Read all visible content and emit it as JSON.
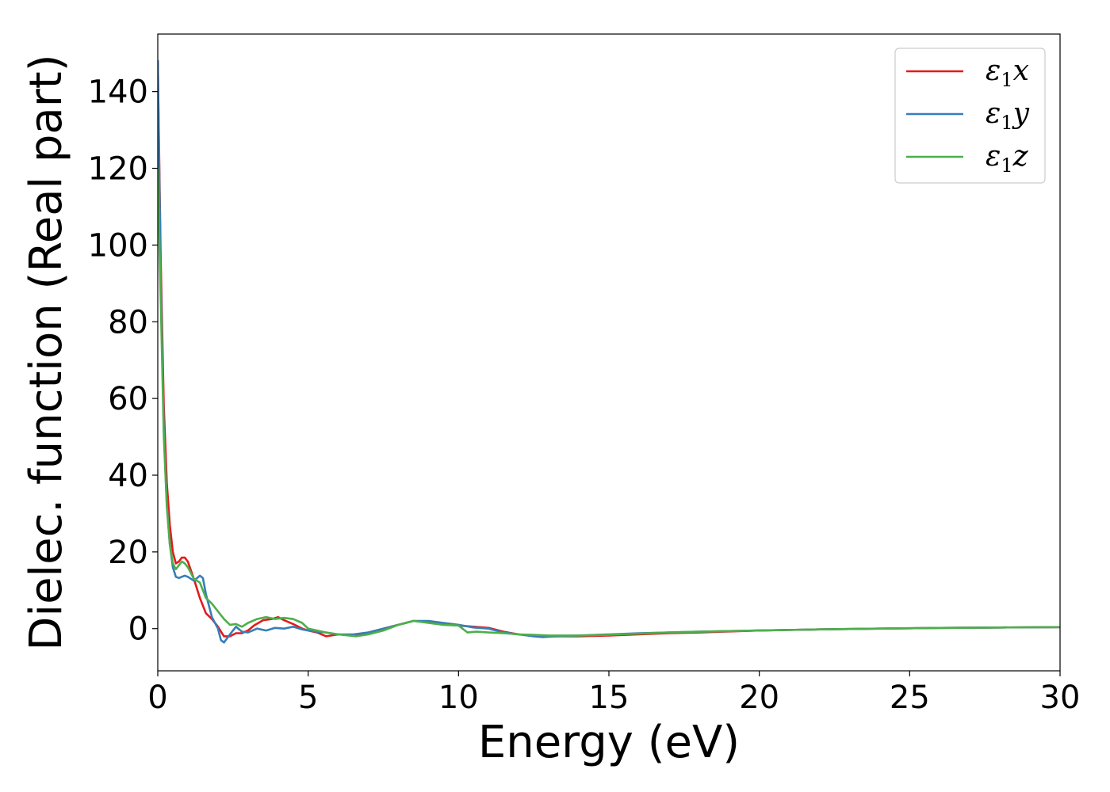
{
  "chart_data": {
    "type": "line",
    "title": "",
    "xlabel": "Energy (eV)",
    "ylabel": "Dielec. function (Real part)",
    "xlim": [
      0,
      30
    ],
    "ylim": [
      -11,
      155
    ],
    "xticks": [
      0,
      5,
      10,
      15,
      20,
      25,
      30
    ],
    "yticks": [
      0,
      20,
      40,
      60,
      80,
      100,
      120,
      140
    ],
    "grid": false,
    "legend_position": "top-right",
    "series": [
      {
        "name": "ε₁x",
        "legend_base": "ε",
        "legend_sub": "1",
        "legend_suffix": "x",
        "color": "#e41a1c",
        "x": [
          0.0,
          0.1,
          0.2,
          0.3,
          0.4,
          0.5,
          0.6,
          0.7,
          0.8,
          0.9,
          1.0,
          1.2,
          1.4,
          1.6,
          1.8,
          2.0,
          2.2,
          2.4,
          2.6,
          2.8,
          3.0,
          3.2,
          3.5,
          3.8,
          4.0,
          4.2,
          4.5,
          4.8,
          5.0,
          5.3,
          5.6,
          6.0,
          6.5,
          7.0,
          7.5,
          8.0,
          8.5,
          9.0,
          9.5,
          10.0,
          10.5,
          11.0,
          11.5,
          12.0,
          12.5,
          13.0,
          13.5,
          14.0,
          15.0,
          16.0,
          17.0,
          18.0,
          20.0,
          22.0,
          24.0,
          26.0,
          28.0,
          30.0
        ],
        "y": [
          148,
          95,
          58,
          38,
          27,
          20,
          17,
          17.5,
          18.5,
          18.5,
          17.5,
          13,
          8,
          4,
          2.5,
          0.5,
          -2,
          -2,
          -1.2,
          -1.2,
          -0.5,
          0.8,
          2.2,
          2.5,
          3,
          2.2,
          1.2,
          0,
          -0.5,
          -1,
          -2,
          -1.5,
          -1.8,
          -1,
          0,
          1,
          2,
          1.8,
          1.2,
          0.8,
          0.5,
          0.2,
          -0.8,
          -1.5,
          -1.8,
          -2,
          -2,
          -2,
          -1.8,
          -1.5,
          -1.2,
          -1,
          -0.5,
          -0.2,
          0,
          0.2,
          0.3,
          0.4
        ]
      },
      {
        "name": "ε₁y",
        "legend_base": "ε",
        "legend_sub": "1",
        "legend_suffix": "y",
        "color": "#377eb8",
        "x": [
          0.0,
          0.1,
          0.2,
          0.3,
          0.4,
          0.5,
          0.6,
          0.7,
          0.8,
          0.9,
          1.0,
          1.2,
          1.4,
          1.5,
          1.6,
          1.8,
          2.0,
          2.1,
          2.2,
          2.4,
          2.6,
          2.8,
          3.0,
          3.3,
          3.6,
          3.9,
          4.2,
          4.5,
          4.8,
          5.0,
          5.3,
          5.6,
          6.0,
          6.5,
          7.0,
          7.5,
          8.0,
          8.5,
          9.0,
          9.5,
          10.0,
          10.5,
          11.0,
          11.5,
          12.0,
          12.5,
          12.8,
          13.2,
          14.0,
          15.0,
          16.0,
          17.0,
          18.0,
          20.0,
          22.0,
          24.0,
          26.0,
          28.0,
          30.0
        ],
        "y": [
          148,
          90,
          52,
          32,
          22,
          16,
          13.5,
          13.2,
          13.5,
          13.8,
          13.5,
          12.5,
          13.8,
          13.2,
          9,
          3,
          0,
          -3,
          -3.6,
          -1.5,
          0.5,
          -0.8,
          -1,
          0,
          -0.5,
          0.2,
          0,
          0.5,
          -0.2,
          -0.5,
          -0.8,
          -1,
          -1.5,
          -1.5,
          -1,
          0,
          1,
          2,
          2,
          1.5,
          1,
          0.3,
          0,
          -1,
          -1.5,
          -2,
          -2.2,
          -2,
          -1.8,
          -1.5,
          -1.2,
          -1,
          -0.8,
          -0.5,
          -0.2,
          0,
          0.2,
          0.3,
          0.4
        ]
      },
      {
        "name": "ε₁z",
        "legend_base": "ε",
        "legend_sub": "1",
        "legend_suffix": "z",
        "color": "#4daf4a",
        "x": [
          0.0,
          0.1,
          0.2,
          0.3,
          0.4,
          0.5,
          0.6,
          0.7,
          0.8,
          0.9,
          1.0,
          1.2,
          1.4,
          1.6,
          1.8,
          2.0,
          2.2,
          2.4,
          2.6,
          2.8,
          3.0,
          3.3,
          3.6,
          3.9,
          4.2,
          4.5,
          4.8,
          5.0,
          5.3,
          5.6,
          6.0,
          6.6,
          7.0,
          7.5,
          8.0,
          8.5,
          9.0,
          9.5,
          10.0,
          10.3,
          10.6,
          11.0,
          11.5,
          12.0,
          12.5,
          13.0,
          14.0,
          15.0,
          16.0,
          17.0,
          18.0,
          20.0,
          22.0,
          24.0,
          26.0,
          28.0,
          30.0
        ],
        "y": [
          120,
          85,
          50,
          32,
          22,
          17,
          15.5,
          16.5,
          17.5,
          17,
          16,
          13,
          12,
          8,
          6.5,
          4.5,
          2.5,
          1,
          1.2,
          0.5,
          1.5,
          2.5,
          3,
          2.5,
          2.8,
          2.5,
          1.5,
          0,
          -0.5,
          -1,
          -1.5,
          -2,
          -1.5,
          -0.5,
          1,
          2,
          1.5,
          1,
          0.8,
          -1,
          -0.8,
          -1,
          -1.2,
          -1.5,
          -1.6,
          -1.8,
          -1.8,
          -1.6,
          -1.3,
          -1,
          -0.8,
          -0.5,
          -0.2,
          0,
          0.2,
          0.3,
          0.4
        ]
      }
    ]
  }
}
